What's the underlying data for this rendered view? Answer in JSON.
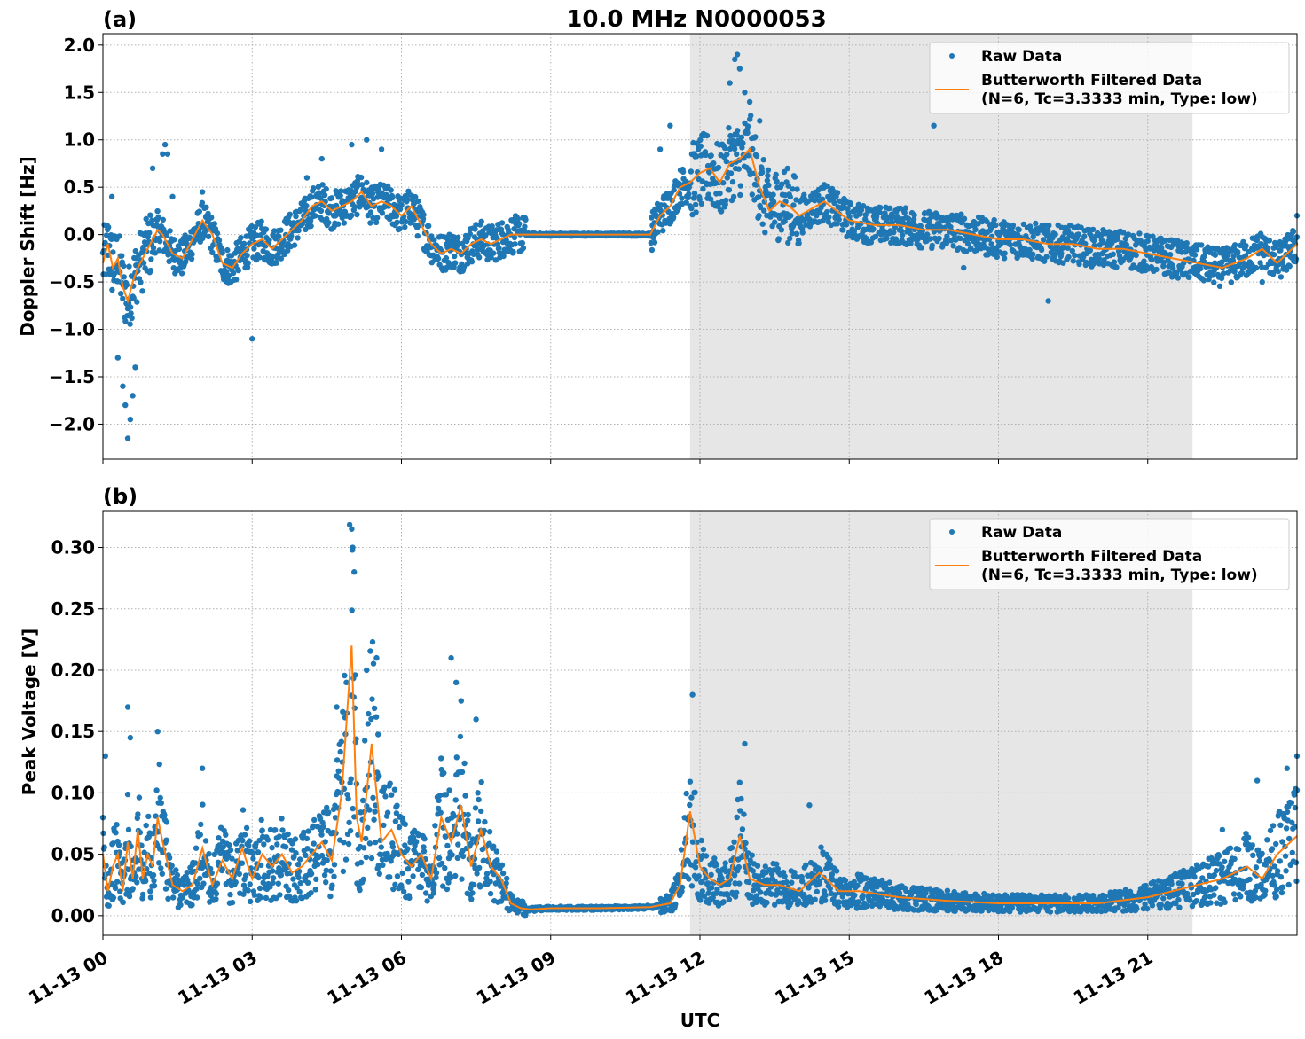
{
  "figure": {
    "title": "10.0 MHz N0000053",
    "xlabel": "UTC",
    "x_ticks": [
      "11-13 00",
      "11-13 03",
      "11-13 06",
      "11-13 09",
      "11-13 12",
      "11-13 15",
      "11-13 18",
      "11-13 21"
    ],
    "colors": {
      "raw": "#1f77b4",
      "filtered": "#ff7f0e",
      "shade": "#e6e6e6",
      "grid": "#b0b0b0"
    }
  },
  "chart_data": [
    {
      "type": "scatter",
      "panel_label": "(a)",
      "ylabel": "Doppler Shift [Hz]",
      "ylim": [
        -2.37,
        2.12
      ],
      "y_ticks": [
        2.0,
        1.5,
        1.0,
        0.5,
        0.0,
        -0.5,
        -1.0,
        -1.5,
        -2.0
      ],
      "y_tick_labels": [
        "2.0",
        "1.5",
        "1.0",
        "0.5",
        "0.0",
        "−0.5",
        "−1.0",
        "−1.5",
        "−2.0"
      ],
      "xlim_hours": [
        0,
        24
      ],
      "x_tick_hours": [
        0,
        3,
        6,
        9,
        12,
        15,
        18,
        21
      ],
      "shaded_span_hours": [
        11.8,
        21.9
      ],
      "grid": true,
      "legend": {
        "placement": "upper right",
        "entries": [
          "Raw Data",
          "Butterworth Filtered Data",
          "(N=6, Tc=3.3333 min, Type: low)"
        ]
      },
      "series": [
        {
          "name": "Butterworth Filtered Data",
          "marker": "line",
          "x": [
            0,
            0.1,
            0.2,
            0.3,
            0.4,
            0.5,
            0.6,
            0.7,
            0.85,
            1.0,
            1.1,
            1.2,
            1.4,
            1.6,
            1.8,
            2.0,
            2.2,
            2.4,
            2.6,
            2.8,
            3.0,
            3.2,
            3.4,
            3.6,
            3.8,
            4.0,
            4.2,
            4.4,
            4.6,
            4.8,
            5.0,
            5.2,
            5.4,
            5.6,
            5.8,
            6.0,
            6.2,
            6.4,
            6.6,
            6.8,
            7.0,
            7.2,
            7.4,
            7.6,
            7.8,
            8.0,
            8.2,
            8.5,
            9.0,
            10.0,
            11.0,
            11.2,
            11.4,
            11.6,
            11.8,
            12.0,
            12.2,
            12.4,
            12.6,
            12.8,
            13.0,
            13.2,
            13.4,
            13.6,
            13.8,
            14.0,
            14.5,
            15.0,
            15.5,
            16.0,
            16.5,
            17.0,
            17.5,
            18.0,
            18.5,
            19.0,
            19.5,
            20.0,
            20.5,
            21.0,
            21.5,
            22.0,
            22.5,
            23.0,
            23.3,
            23.6,
            24.0
          ],
          "y": [
            -0.3,
            -0.1,
            -0.35,
            -0.25,
            -0.55,
            -0.7,
            -0.5,
            -0.35,
            -0.2,
            -0.05,
            0.05,
            0.0,
            -0.2,
            -0.25,
            -0.05,
            0.15,
            0.0,
            -0.3,
            -0.35,
            -0.2,
            -0.1,
            -0.05,
            -0.15,
            -0.05,
            0.05,
            0.15,
            0.3,
            0.35,
            0.25,
            0.3,
            0.35,
            0.45,
            0.3,
            0.35,
            0.3,
            0.2,
            0.3,
            0.1,
            -0.1,
            -0.2,
            -0.15,
            -0.2,
            -0.1,
            -0.05,
            -0.1,
            -0.05,
            0.0,
            0.0,
            0.0,
            0.0,
            0.0,
            0.2,
            0.3,
            0.5,
            0.55,
            0.65,
            0.7,
            0.55,
            0.75,
            0.8,
            0.9,
            0.5,
            0.25,
            0.35,
            0.3,
            0.2,
            0.35,
            0.15,
            0.1,
            0.1,
            0.05,
            0.05,
            0.0,
            -0.05,
            -0.05,
            -0.1,
            -0.1,
            -0.15,
            -0.15,
            -0.2,
            -0.25,
            -0.3,
            -0.35,
            -0.25,
            -0.15,
            -0.3,
            -0.1
          ]
        },
        {
          "name": "Raw Data",
          "marker": "point",
          "x": [
            0.18,
            0.3,
            0.4,
            0.45,
            0.5,
            0.55,
            0.6,
            0.65,
            1.0,
            1.2,
            1.25,
            1.3,
            1.4,
            2.0,
            3.0,
            4.1,
            4.4,
            5.0,
            5.3,
            5.6,
            11.2,
            11.4,
            12.6,
            12.7,
            12.75,
            12.8,
            12.9,
            13.0,
            13.2,
            16.7,
            17.3,
            19.0,
            23.3,
            24.0
          ],
          "y": [
            0.4,
            -1.3,
            -1.6,
            -1.8,
            -2.15,
            -1.95,
            -1.7,
            -1.4,
            0.7,
            0.85,
            0.95,
            0.85,
            0.4,
            0.45,
            -1.1,
            0.6,
            0.8,
            0.95,
            1.0,
            0.9,
            0.9,
            1.15,
            1.6,
            1.85,
            1.9,
            1.75,
            1.5,
            1.4,
            1.2,
            1.15,
            -0.35,
            -0.7,
            -0.5,
            0.2
          ]
        }
      ]
    },
    {
      "type": "scatter",
      "panel_label": "(b)",
      "ylabel": "Peak Voltage [V]",
      "ylim": [
        -0.016,
        0.33
      ],
      "y_ticks": [
        0.3,
        0.25,
        0.2,
        0.15,
        0.1,
        0.05,
        0.0
      ],
      "y_tick_labels": [
        "0.30",
        "0.25",
        "0.20",
        "0.15",
        "0.10",
        "0.05",
        "0.00"
      ],
      "xlim_hours": [
        0,
        24
      ],
      "x_tick_hours": [
        0,
        3,
        6,
        9,
        12,
        15,
        18,
        21
      ],
      "shaded_span_hours": [
        11.8,
        21.9
      ],
      "grid": true,
      "legend": {
        "placement": "upper right",
        "entries": [
          "Raw Data",
          "Butterworth Filtered Data",
          "(N=6, Tc=3.3333 min, Type: low)"
        ]
      },
      "series": [
        {
          "name": "Butterworth Filtered Data",
          "marker": "line",
          "x": [
            0,
            0.1,
            0.2,
            0.3,
            0.4,
            0.5,
            0.6,
            0.7,
            0.8,
            0.9,
            1.0,
            1.1,
            1.2,
            1.4,
            1.6,
            1.8,
            2.0,
            2.2,
            2.4,
            2.6,
            2.8,
            3.0,
            3.2,
            3.4,
            3.6,
            3.8,
            4.0,
            4.2,
            4.4,
            4.6,
            4.8,
            5.0,
            5.1,
            5.2,
            5.4,
            5.6,
            5.8,
            6.0,
            6.2,
            6.4,
            6.6,
            6.8,
            7.0,
            7.2,
            7.4,
            7.6,
            7.8,
            8.0,
            8.2,
            8.4,
            8.6,
            9.0,
            10.0,
            11.0,
            11.4,
            11.6,
            11.8,
            12.0,
            12.2,
            12.4,
            12.6,
            12.8,
            13.0,
            13.3,
            13.6,
            14.0,
            14.4,
            14.8,
            15.2,
            16.0,
            17.0,
            18.0,
            19.0,
            20.0,
            21.0,
            21.5,
            22.0,
            22.5,
            23.0,
            23.3,
            23.6,
            24.0
          ],
          "y": [
            0.05,
            0.02,
            0.04,
            0.05,
            0.02,
            0.06,
            0.03,
            0.07,
            0.03,
            0.05,
            0.04,
            0.08,
            0.06,
            0.025,
            0.02,
            0.025,
            0.055,
            0.025,
            0.045,
            0.03,
            0.055,
            0.03,
            0.05,
            0.04,
            0.05,
            0.035,
            0.04,
            0.05,
            0.06,
            0.045,
            0.1,
            0.22,
            0.08,
            0.06,
            0.14,
            0.06,
            0.07,
            0.05,
            0.04,
            0.05,
            0.03,
            0.08,
            0.06,
            0.09,
            0.04,
            0.07,
            0.04,
            0.03,
            0.01,
            0.006,
            0.005,
            0.006,
            0.006,
            0.007,
            0.01,
            0.025,
            0.085,
            0.04,
            0.03,
            0.025,
            0.03,
            0.065,
            0.03,
            0.025,
            0.025,
            0.02,
            0.035,
            0.02,
            0.02,
            0.015,
            0.012,
            0.01,
            0.01,
            0.01,
            0.015,
            0.02,
            0.025,
            0.03,
            0.04,
            0.03,
            0.05,
            0.065
          ]
        },
        {
          "name": "Raw Data",
          "marker": "point",
          "x": [
            0.05,
            0.5,
            0.55,
            1.1,
            2.0,
            4.7,
            5.0,
            5.02,
            5.05,
            5.3,
            5.5,
            7.0,
            7.1,
            7.2,
            7.5,
            11.85,
            12.9,
            14.2,
            22.5,
            23.2,
            23.8,
            24.0
          ],
          "y": [
            0.13,
            0.17,
            0.145,
            0.15,
            0.12,
            0.17,
            0.315,
            0.3,
            0.28,
            0.2,
            0.21,
            0.21,
            0.19,
            0.175,
            0.16,
            0.18,
            0.14,
            0.09,
            0.07,
            0.11,
            0.12,
            0.13
          ]
        }
      ]
    }
  ]
}
